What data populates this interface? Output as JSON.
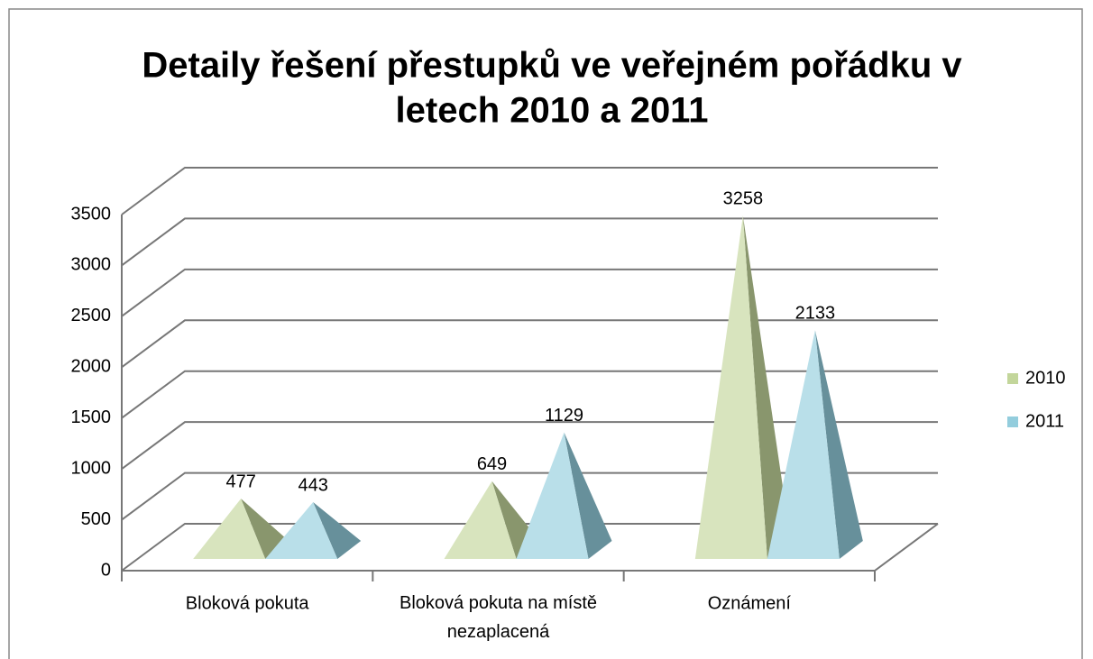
{
  "chart_data": {
    "type": "pyramid3d",
    "title": [
      "Detaily řešení přestupků ve veřejném pořádku v",
      "letech 2010 a 2011"
    ],
    "categories": [
      "Bloková pokuta",
      "Bloková pokuta na místě nezaplacená",
      "Oznámení"
    ],
    "series": [
      {
        "name": "2010",
        "color": "#c3d69b",
        "values": [
          477,
          649,
          3258
        ]
      },
      {
        "name": "2011",
        "color": "#93cddd",
        "values": [
          443,
          1129,
          2133
        ]
      }
    ],
    "ylim": [
      0,
      3500
    ],
    "yticks": [
      0,
      500,
      1000,
      1500,
      2000,
      2500,
      3000,
      3500
    ],
    "grid": true,
    "legend": "right"
  }
}
